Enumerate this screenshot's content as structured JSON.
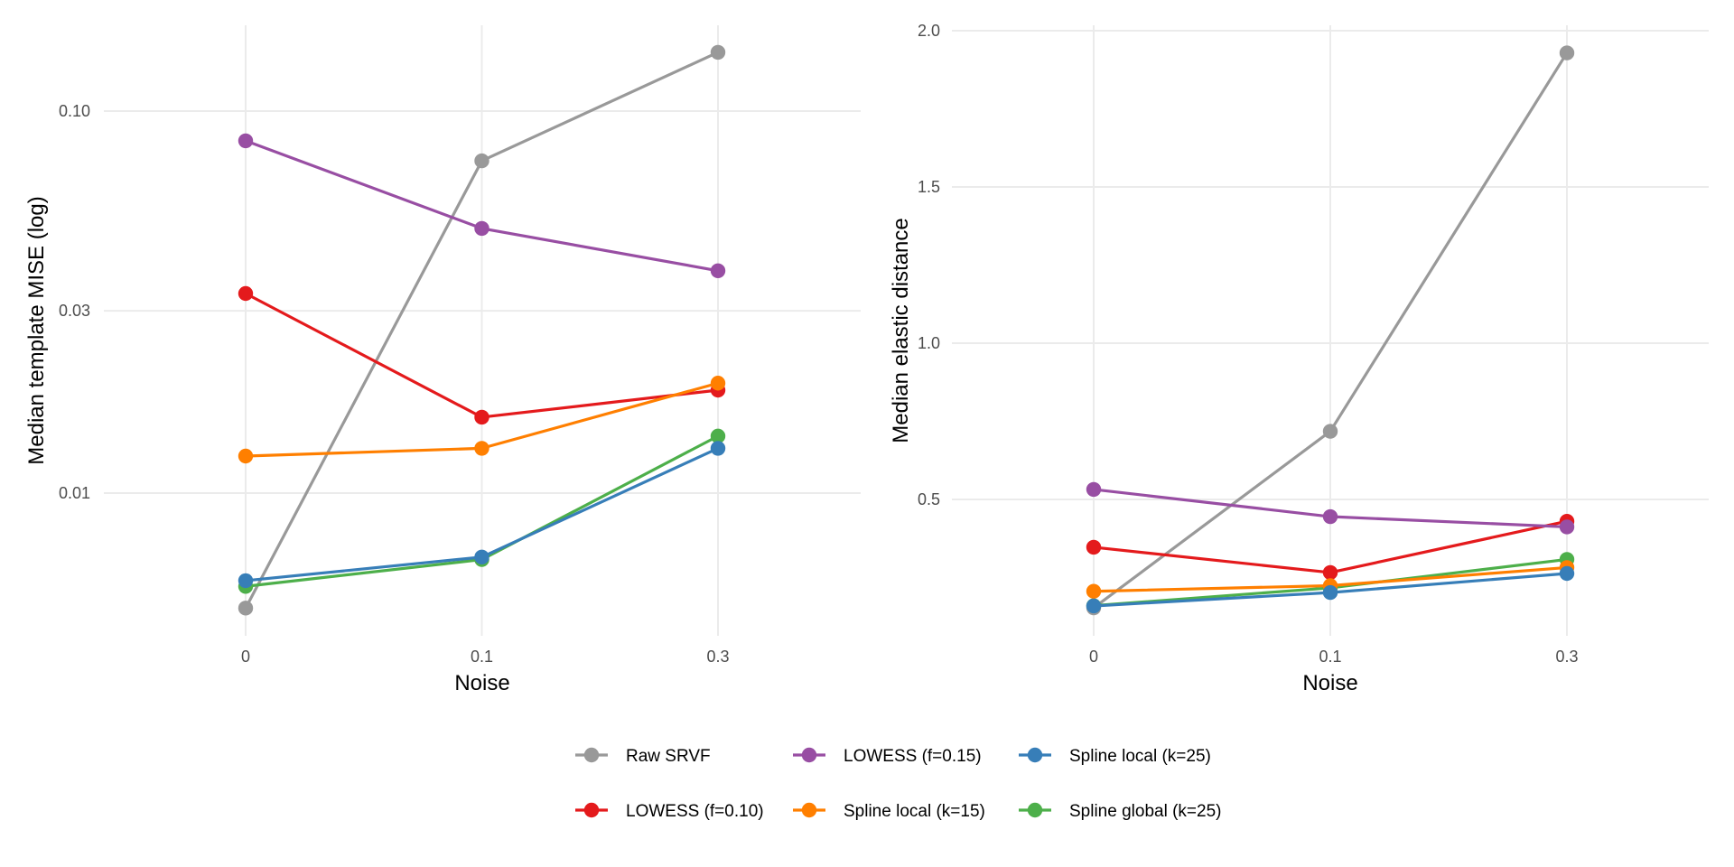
{
  "chart_data": [
    {
      "type": "line",
      "panel": "left",
      "title": "",
      "xlabel": "Noise",
      "ylabel": "Median template MISE (log)",
      "yscale": "log10",
      "categories": [
        "0",
        "0.1",
        "0.3"
      ],
      "yticks": [
        0.01,
        0.03,
        0.1
      ],
      "ytick_labels": [
        "0.01",
        "0.03",
        "0.10"
      ],
      "ylim": [
        0.0045,
        0.16
      ],
      "grid": true,
      "series": [
        {
          "name": "Raw SRVF",
          "color": "#999999",
          "values": [
            0.005,
            0.0741,
            0.1425
          ]
        },
        {
          "name": "LOWESS (f=0.10)",
          "color": "#e41a1c",
          "values": [
            0.0333,
            0.0158,
            0.0186
          ]
        },
        {
          "name": "LOWESS (f=0.15)",
          "color": "#984ea3",
          "values": [
            0.0836,
            0.0493,
            0.0382
          ]
        },
        {
          "name": "Spline global (k=25)",
          "color": "#4daf4a",
          "values": [
            0.0057,
            0.0067,
            0.0141
          ]
        },
        {
          "name": "Spline local (k=15)",
          "color": "#ff7f00",
          "values": [
            0.0125,
            0.0131,
            0.0194
          ]
        },
        {
          "name": "Spline local (k=25)",
          "color": "#377eb8",
          "values": [
            0.0059,
            0.0068,
            0.0131
          ]
        }
      ]
    },
    {
      "type": "line",
      "panel": "right",
      "title": "",
      "xlabel": "Noise",
      "ylabel": "Median elastic distance",
      "yscale": "linear",
      "categories": [
        "0",
        "0.1",
        "0.3"
      ],
      "yticks": [
        0.5,
        1.0,
        1.5,
        2.0
      ],
      "ytick_labels": [
        "0.5",
        "1.0",
        "1.5",
        "2.0"
      ],
      "ylim": [
        0.08,
        2.0
      ],
      "grid": true,
      "series": [
        {
          "name": "Raw SRVF",
          "color": "#999999",
          "values": [
            0.153,
            0.718,
            1.929
          ]
        },
        {
          "name": "LOWESS (f=0.10)",
          "color": "#e41a1c",
          "values": [
            0.347,
            0.266,
            0.43
          ]
        },
        {
          "name": "LOWESS (f=0.15)",
          "color": "#984ea3",
          "values": [
            0.532,
            0.445,
            0.412
          ]
        },
        {
          "name": "Spline global (k=25)",
          "color": "#4daf4a",
          "values": [
            0.16,
            0.217,
            0.308
          ]
        },
        {
          "name": "Spline local (k=15)",
          "color": "#ff7f00",
          "values": [
            0.206,
            0.224,
            0.282
          ]
        },
        {
          "name": "Spline local (k=25)",
          "color": "#377eb8",
          "values": [
            0.159,
            0.202,
            0.263
          ]
        }
      ]
    }
  ],
  "legend": {
    "placement": "bottom",
    "items": [
      {
        "label": "Raw SRVF",
        "color": "#999999"
      },
      {
        "label": "LOWESS (f=0.15)",
        "color": "#984ea3"
      },
      {
        "label": "Spline local (k=25)",
        "color": "#377eb8"
      },
      {
        "label": "LOWESS (f=0.10)",
        "color": "#e41a1c"
      },
      {
        "label": "Spline local (k=15)",
        "color": "#ff7f00"
      },
      {
        "label": "Spline global (k=25)",
        "color": "#4daf4a"
      }
    ]
  }
}
